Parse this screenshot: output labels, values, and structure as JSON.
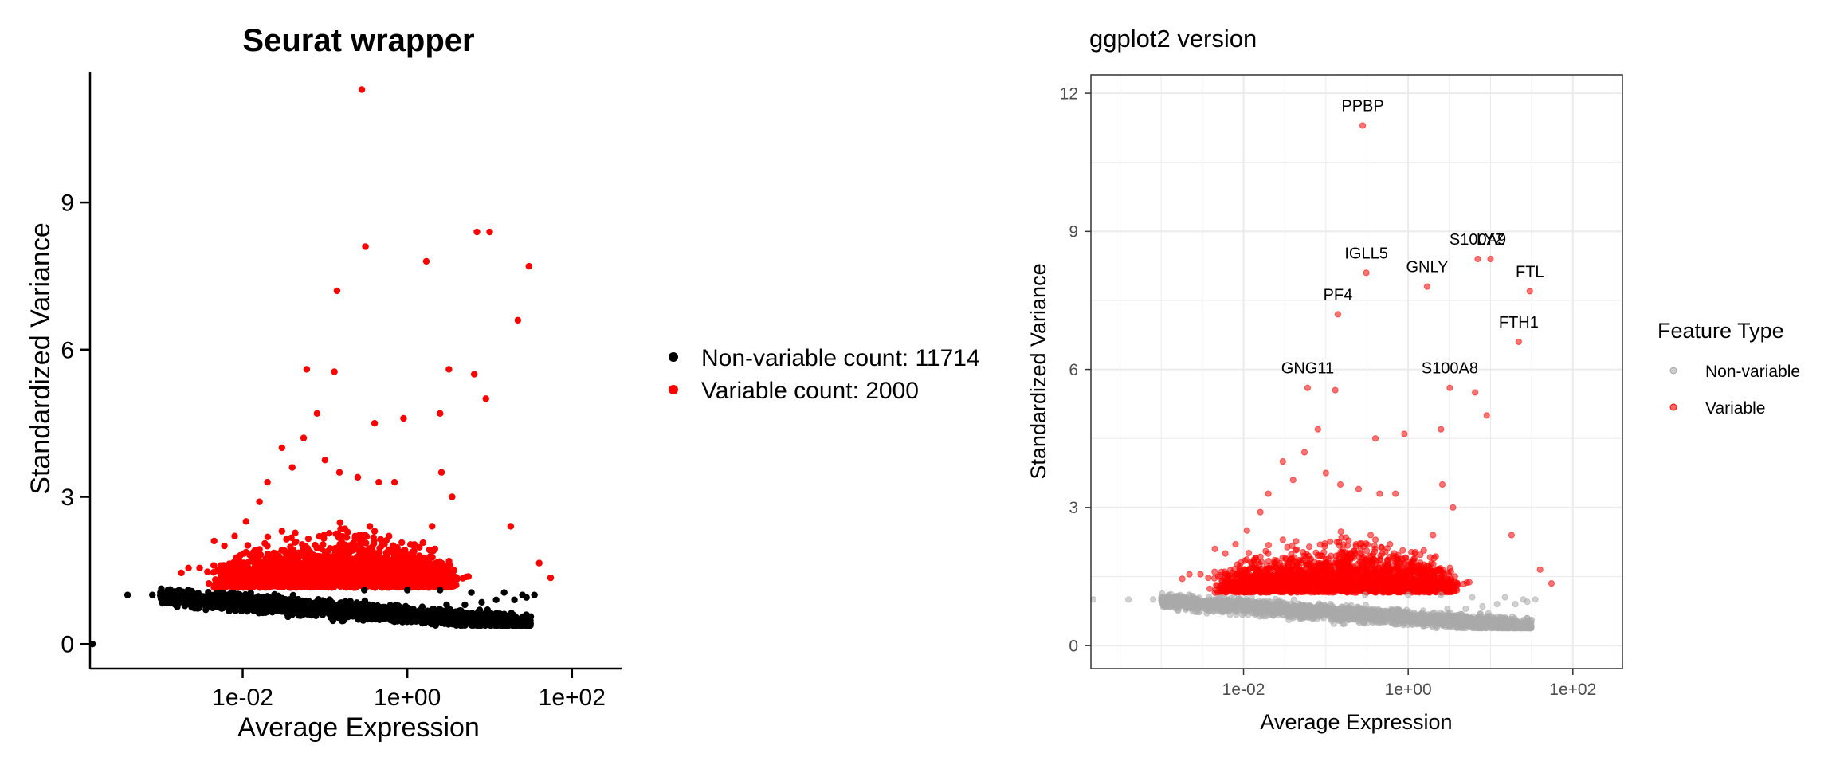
{
  "chart_data": [
    {
      "type": "scatter",
      "title": "Seurat wrapper",
      "xlabel": "Average Expression",
      "ylabel": "Standardized Variance",
      "x_scale": "log10",
      "xlim": [
        0.00014,
        400
      ],
      "ylim": [
        -0.5,
        11.6
      ],
      "x_ticks": [
        {
          "value": 0.01,
          "label": "1e-02"
        },
        {
          "value": 1,
          "label": "1e+00"
        },
        {
          "value": 100,
          "label": "1e+02"
        }
      ],
      "y_ticks": [
        {
          "value": 0,
          "label": "0"
        },
        {
          "value": 3,
          "label": "3"
        },
        {
          "value": 6,
          "label": "6"
        },
        {
          "value": 9,
          "label": "9"
        }
      ],
      "grid": false,
      "legend_position": "right",
      "legend": [
        {
          "label": "Non-variable count: 11714",
          "color": "#000000"
        },
        {
          "label": "Variable count: 2000",
          "color": "#ff0000"
        }
      ],
      "series": [
        {
          "name": "Non-variable count: 11714",
          "color": "#000000",
          "points": [
            [
              0.00015,
              0.0
            ],
            [
              0.0004,
              1.0
            ],
            [
              0.0008,
              1.0
            ],
            [
              0.0014,
              1.0
            ],
            [
              0.002,
              0.98
            ],
            [
              0.003,
              0.97
            ],
            [
              0.004,
              0.97
            ],
            [
              0.006,
              0.95
            ],
            [
              0.009,
              0.93
            ],
            [
              0.013,
              0.9
            ],
            [
              0.02,
              0.88
            ],
            [
              0.03,
              0.85
            ],
            [
              0.05,
              0.8
            ],
            [
              0.08,
              0.75
            ],
            [
              0.12,
              0.7
            ],
            [
              0.2,
              0.65
            ],
            [
              0.3,
              0.6
            ],
            [
              0.5,
              0.55
            ],
            [
              0.8,
              0.55
            ],
            [
              1.2,
              0.6
            ],
            [
              2,
              0.7
            ],
            [
              3,
              0.8
            ],
            [
              5,
              0.8
            ],
            [
              8,
              0.85
            ],
            [
              12,
              0.9
            ],
            [
              20,
              0.9
            ],
            [
              28,
              0.95
            ],
            [
              35,
              1.0
            ],
            [
              0.3,
              1.1
            ],
            [
              1.0,
              1.1
            ],
            [
              2.5,
              1.1
            ],
            [
              6,
              1.05
            ],
            [
              15,
              1.05
            ],
            [
              25,
              1.0
            ]
          ]
        },
        {
          "name": "Variable count: 2000",
          "color": "#ff0000",
          "points": [
            [
              0.28,
              11.3
            ],
            [
              0.31,
              8.1
            ],
            [
              7.0,
              8.4
            ],
            [
              10.0,
              8.4
            ],
            [
              1.7,
              7.8
            ],
            [
              30.0,
              7.7
            ],
            [
              0.14,
              7.2
            ],
            [
              22.0,
              6.6
            ],
            [
              0.06,
              5.6
            ],
            [
              0.13,
              5.55
            ],
            [
              3.2,
              5.6
            ],
            [
              6.5,
              5.5
            ],
            [
              9.0,
              5.0
            ],
            [
              0.9,
              4.6
            ],
            [
              0.4,
              4.5
            ],
            [
              2.5,
              4.7
            ],
            [
              0.08,
              4.7
            ],
            [
              0.03,
              4.0
            ],
            [
              0.055,
              4.2
            ],
            [
              0.04,
              3.6
            ],
            [
              0.1,
              3.75
            ],
            [
              0.02,
              3.3
            ],
            [
              0.15,
              3.5
            ],
            [
              0.25,
              3.4
            ],
            [
              0.45,
              3.3
            ],
            [
              2.6,
              3.5
            ],
            [
              2.0,
              2.4
            ],
            [
              3.5,
              3.0
            ],
            [
              18.0,
              2.4
            ],
            [
              0.0045,
              2.1
            ],
            [
              0.006,
              2.0
            ],
            [
              0.011,
              2.5
            ],
            [
              0.016,
              2.9
            ],
            [
              0.008,
              2.2
            ],
            [
              0.7,
              3.3
            ],
            [
              0.35,
              2.4
            ],
            [
              0.03,
              2.3
            ],
            [
              0.4,
              2.3
            ],
            [
              0.6,
              2.2
            ],
            [
              1.2,
              2.0
            ],
            [
              1.4,
              1.8
            ],
            [
              0.0018,
              1.45
            ],
            [
              0.0022,
              1.55
            ],
            [
              0.003,
              1.55
            ],
            [
              40.0,
              1.65
            ],
            [
              55.0,
              1.35
            ],
            [
              0.05,
              1.8
            ],
            [
              0.1,
              1.7
            ],
            [
              0.2,
              1.9
            ],
            [
              1.0,
              1.6
            ]
          ]
        }
      ]
    },
    {
      "type": "scatter",
      "title": "ggplot2 version",
      "xlabel": "Average Expression",
      "ylabel": "Standardized Variance",
      "x_scale": "log10",
      "xlim": [
        0.00014,
        400
      ],
      "ylim": [
        -0.5,
        12.4
      ],
      "x_ticks": [
        {
          "value": 0.01,
          "label": "1e-02"
        },
        {
          "value": 1,
          "label": "1e+00"
        },
        {
          "value": 100,
          "label": "1e+02"
        }
      ],
      "y_ticks": [
        {
          "value": 0,
          "label": "0"
        },
        {
          "value": 3,
          "label": "3"
        },
        {
          "value": 6,
          "label": "6"
        },
        {
          "value": 9,
          "label": "9"
        },
        {
          "value": 12,
          "label": "12"
        }
      ],
      "grid": true,
      "legend_position": "right",
      "legend_title": "Feature Type",
      "legend": [
        {
          "label": "Non-variable",
          "color": "#aaaaaa"
        },
        {
          "label": "Variable",
          "color": "#ff0000"
        }
      ],
      "series": [
        {
          "name": "Non-variable",
          "color": "#aaaaaa",
          "points": [
            [
              0.00015,
              1.0
            ],
            [
              0.0004,
              1.0
            ],
            [
              0.0008,
              1.0
            ],
            [
              0.0014,
              1.0
            ],
            [
              0.002,
              0.98
            ],
            [
              0.003,
              0.97
            ],
            [
              0.004,
              0.97
            ],
            [
              0.006,
              0.95
            ],
            [
              0.009,
              0.93
            ],
            [
              0.013,
              0.9
            ],
            [
              0.02,
              0.88
            ],
            [
              0.03,
              0.85
            ],
            [
              0.05,
              0.8
            ],
            [
              0.08,
              0.75
            ],
            [
              0.12,
              0.7
            ],
            [
              0.2,
              0.65
            ],
            [
              0.3,
              0.6
            ],
            [
              0.5,
              0.55
            ],
            [
              0.8,
              0.55
            ],
            [
              1.2,
              0.6
            ],
            [
              2,
              0.7
            ],
            [
              3,
              0.8
            ],
            [
              5,
              0.8
            ],
            [
              8,
              0.85
            ],
            [
              12,
              0.9
            ],
            [
              20,
              0.9
            ],
            [
              28,
              0.95
            ],
            [
              35,
              1.0
            ],
            [
              0.3,
              1.1
            ],
            [
              1.0,
              1.1
            ],
            [
              2.5,
              1.1
            ],
            [
              6,
              1.05
            ],
            [
              15,
              1.05
            ],
            [
              25,
              1.0
            ]
          ]
        },
        {
          "name": "Variable",
          "color": "#ff0000",
          "points": [
            [
              0.28,
              11.3
            ],
            [
              0.31,
              8.1
            ],
            [
              7.0,
              8.4
            ],
            [
              10.0,
              8.4
            ],
            [
              1.7,
              7.8
            ],
            [
              30.0,
              7.7
            ],
            [
              0.14,
              7.2
            ],
            [
              22.0,
              6.6
            ],
            [
              0.06,
              5.6
            ],
            [
              0.13,
              5.55
            ],
            [
              3.2,
              5.6
            ],
            [
              6.5,
              5.5
            ],
            [
              9.0,
              5.0
            ],
            [
              0.9,
              4.6
            ],
            [
              0.4,
              4.5
            ],
            [
              2.5,
              4.7
            ],
            [
              0.08,
              4.7
            ],
            [
              0.03,
              4.0
            ],
            [
              0.055,
              4.2
            ],
            [
              0.04,
              3.6
            ],
            [
              0.1,
              3.75
            ],
            [
              0.02,
              3.3
            ],
            [
              0.15,
              3.5
            ],
            [
              0.25,
              3.4
            ],
            [
              0.45,
              3.3
            ],
            [
              2.6,
              3.5
            ],
            [
              2.0,
              2.4
            ],
            [
              3.5,
              3.0
            ],
            [
              18.0,
              2.4
            ],
            [
              0.0045,
              2.1
            ],
            [
              0.006,
              2.0
            ],
            [
              0.011,
              2.5
            ],
            [
              0.016,
              2.9
            ],
            [
              0.008,
              2.2
            ],
            [
              0.7,
              3.3
            ],
            [
              0.35,
              2.4
            ],
            [
              0.03,
              2.3
            ],
            [
              0.4,
              2.3
            ],
            [
              0.6,
              2.2
            ],
            [
              1.2,
              2.0
            ],
            [
              1.4,
              1.8
            ],
            [
              0.0018,
              1.45
            ],
            [
              0.0022,
              1.55
            ],
            [
              0.003,
              1.55
            ],
            [
              40.0,
              1.65
            ],
            [
              55.0,
              1.35
            ],
            [
              0.05,
              1.8
            ],
            [
              0.1,
              1.7
            ],
            [
              0.2,
              1.9
            ],
            [
              1.0,
              1.6
            ]
          ]
        }
      ],
      "annotations": [
        {
          "label": "PPBP",
          "x": 0.28,
          "y": 11.3
        },
        {
          "label": "S100A9",
          "x": 7.0,
          "y": 8.4
        },
        {
          "label": "LYZ",
          "x": 10.0,
          "y": 8.4
        },
        {
          "label": "IGLL5",
          "x": 0.31,
          "y": 8.1
        },
        {
          "label": "GNLY",
          "x": 1.7,
          "y": 7.8
        },
        {
          "label": "FTL",
          "x": 30.0,
          "y": 7.7
        },
        {
          "label": "PF4",
          "x": 0.14,
          "y": 7.2
        },
        {
          "label": "FTH1",
          "x": 22.0,
          "y": 6.6
        },
        {
          "label": "GNG11",
          "x": 0.06,
          "y": 5.6
        },
        {
          "label": "S100A8",
          "x": 3.2,
          "y": 5.6
        }
      ]
    }
  ]
}
